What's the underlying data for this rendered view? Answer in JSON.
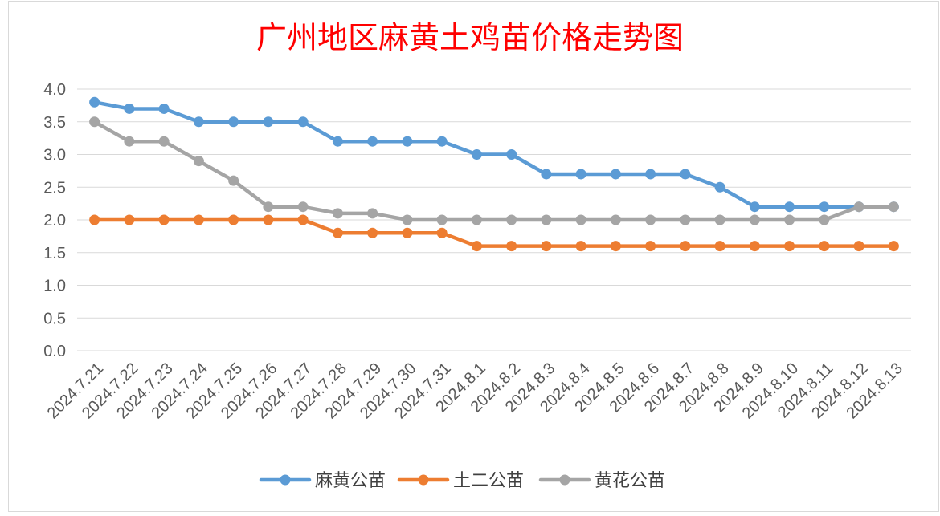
{
  "chart_data": {
    "type": "line",
    "title": "广州地区麻黄土鸡苗价格走势图",
    "title_color": "#FF0000",
    "categories": [
      "2024.7.21",
      "2024.7.22",
      "2024.7.23",
      "2024.7.24",
      "2024.7.25",
      "2024.7.26",
      "2024.7.27",
      "2024.7.28",
      "2024.7.29",
      "2024.7.30",
      "2024.7.31",
      "2024.8.1",
      "2024.8.2",
      "2024.8.3",
      "2024.8.4",
      "2024.8.5",
      "2024.8.6",
      "2024.8.7",
      "2024.8.8",
      "2024.8.9",
      "2024.8.10",
      "2024.8.11",
      "2024.8.12",
      "2024.8.13"
    ],
    "series": [
      {
        "name": "麻黄公苗",
        "color": "#5B9BD5",
        "values": [
          3.8,
          3.7,
          3.7,
          3.5,
          3.5,
          3.5,
          3.5,
          3.2,
          3.2,
          3.2,
          3.2,
          3.0,
          3.0,
          2.7,
          2.7,
          2.7,
          2.7,
          2.7,
          2.5,
          2.2,
          2.2,
          2.2,
          2.2,
          2.2
        ]
      },
      {
        "name": "土二公苗",
        "color": "#ED7D31",
        "values": [
          2.0,
          2.0,
          2.0,
          2.0,
          2.0,
          2.0,
          2.0,
          1.8,
          1.8,
          1.8,
          1.8,
          1.6,
          1.6,
          1.6,
          1.6,
          1.6,
          1.6,
          1.6,
          1.6,
          1.6,
          1.6,
          1.6,
          1.6,
          1.6
        ]
      },
      {
        "name": "黄花公苗",
        "color": "#A5A5A5",
        "values": [
          3.5,
          3.2,
          3.2,
          2.9,
          2.6,
          2.2,
          2.2,
          2.1,
          2.1,
          2.0,
          2.0,
          2.0,
          2.0,
          2.0,
          2.0,
          2.0,
          2.0,
          2.0,
          2.0,
          2.0,
          2.0,
          2.0,
          2.2,
          2.2
        ]
      }
    ],
    "y_ticks": [
      "0.0",
      "0.5",
      "1.0",
      "1.5",
      "2.0",
      "2.5",
      "3.0",
      "3.5",
      "4.0"
    ],
    "ylim": [
      0,
      4.0
    ],
    "grid": "horizontal",
    "legend_position": "bottom",
    "xlabel": "",
    "ylabel": ""
  }
}
